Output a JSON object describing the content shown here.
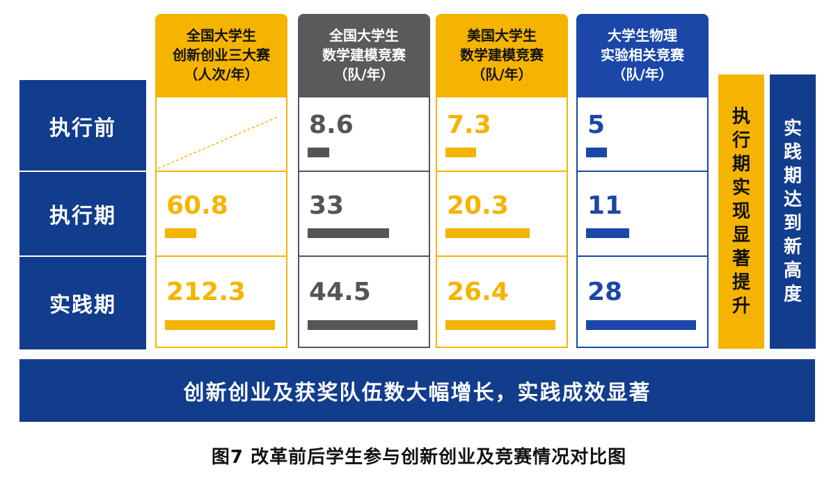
{
  "chart_data": {
    "type": "table",
    "caption": "图7  改革前后学生参与创新创业及竞赛情况对比图",
    "rows": [
      "执行前",
      "执行期",
      "实践期"
    ],
    "columns": [
      {
        "header": [
          "全国大学生",
          "创新创业三大赛",
          "（人次/年）"
        ],
        "color": "#f5b400",
        "style": "gold",
        "values": [
          null,
          60.8,
          212.3
        ],
        "labels": [
          "",
          "60.8",
          "212.3"
        ],
        "max": 212.3
      },
      {
        "header": [
          "全国大学生",
          "数学建模竞赛",
          "（队/年）"
        ],
        "color": "#555555",
        "style": "dark",
        "values": [
          8.6,
          33,
          44.5
        ],
        "labels": [
          "8.6",
          "33",
          "44.5"
        ],
        "max": 44.5
      },
      {
        "header": [
          "美国大学生",
          "数学建模竞赛",
          "（队/年）"
        ],
        "color": "#f5b400",
        "style": "gold",
        "values": [
          7.3,
          20.3,
          26.4
        ],
        "labels": [
          "7.3",
          "20.3",
          "26.4"
        ],
        "max": 26.4
      },
      {
        "header": [
          "大学生物理",
          "实验相关竞赛",
          "（队/年）"
        ],
        "color": "#1a47a8",
        "style": "blue",
        "values": [
          5,
          11,
          28
        ],
        "labels": [
          "5",
          "11",
          "28"
        ],
        "max": 28
      }
    ],
    "side_notes": [
      {
        "text": "执行期实现显著提升",
        "color": "#f5b400"
      },
      {
        "text": "实践期达到新高度",
        "color": "#123c8c"
      }
    ],
    "footer": "创新创业及获奖队伍数大幅增长，实践成效显著"
  },
  "colors": {
    "navy": "#123c8c",
    "gold": "#f5b400",
    "gray": "#555555",
    "blue": "#1a47a8"
  }
}
